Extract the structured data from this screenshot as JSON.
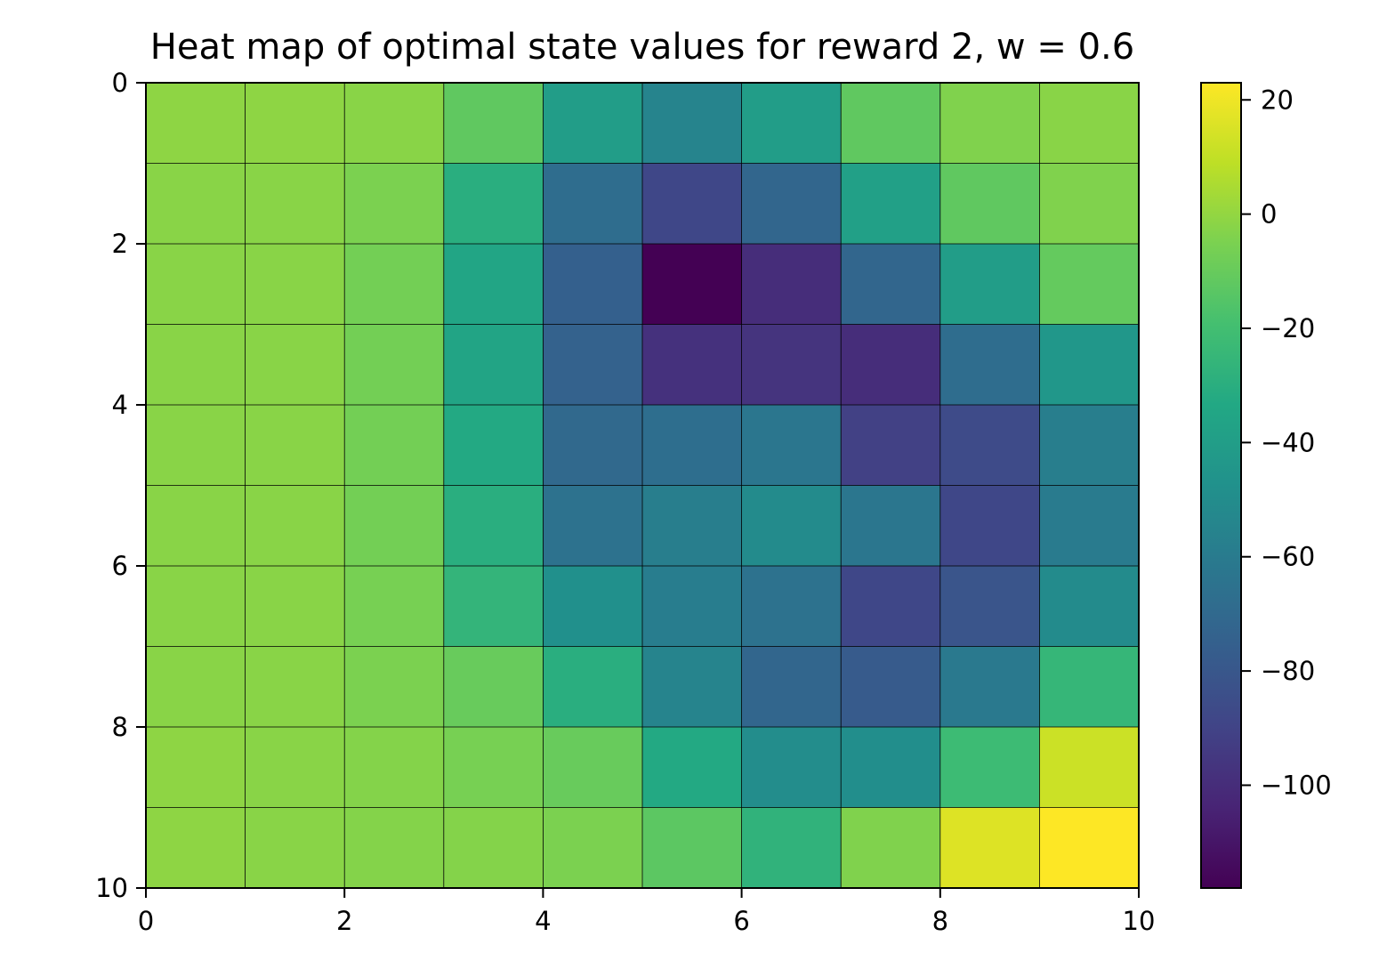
{
  "chart_data": {
    "type": "heatmap",
    "title": "Heat map of optimal state values for reward 2, w = 0.6",
    "xlabel": "",
    "ylabel": "",
    "xlim": [
      0,
      10
    ],
    "ylim": [
      10,
      0
    ],
    "x_ticks": [
      "0",
      "2",
      "4",
      "6",
      "8",
      "10"
    ],
    "y_ticks": [
      "0",
      "2",
      "4",
      "6",
      "8",
      "10"
    ],
    "colormap": "viridis",
    "color_range": [
      -118,
      23
    ],
    "colorbar_ticks": [
      "20",
      "0",
      "−20",
      "−40",
      "−60",
      "−80",
      "−100"
    ],
    "colorbar_tick_values": [
      20,
      0,
      -20,
      -40,
      -60,
      -80,
      -100
    ],
    "grid_lines": true,
    "values": [
      [
        -1,
        -1,
        -2,
        -12,
        -40,
        -55,
        -40,
        -12,
        -4,
        -2
      ],
      [
        -2,
        -2,
        -5,
        -30,
        -68,
        -88,
        -72,
        -38,
        -12,
        -4
      ],
      [
        -2,
        -2,
        -7,
        -35,
        -75,
        -118,
        -100,
        -72,
        -40,
        -11
      ],
      [
        -2,
        -2,
        -7,
        -36,
        -74,
        -98,
        -97,
        -100,
        -68,
        -44
      ],
      [
        -2,
        -2,
        -7,
        -33,
        -70,
        -67,
        -63,
        -91,
        -86,
        -58
      ],
      [
        -2,
        -2,
        -7,
        -30,
        -65,
        -58,
        -51,
        -63,
        -88,
        -60
      ],
      [
        -2,
        -2,
        -6,
        -26,
        -48,
        -59,
        -65,
        -88,
        -81,
        -51
      ],
      [
        -2,
        -2,
        -5,
        -10,
        -30,
        -55,
        -72,
        -78,
        -61,
        -25
      ],
      [
        -1,
        -2,
        -3,
        -6,
        -10,
        -33,
        -50,
        -49,
        -22,
        12
      ],
      [
        -1,
        -2,
        -3,
        -3,
        -5,
        -13,
        -27,
        -4,
        16,
        23
      ]
    ]
  }
}
